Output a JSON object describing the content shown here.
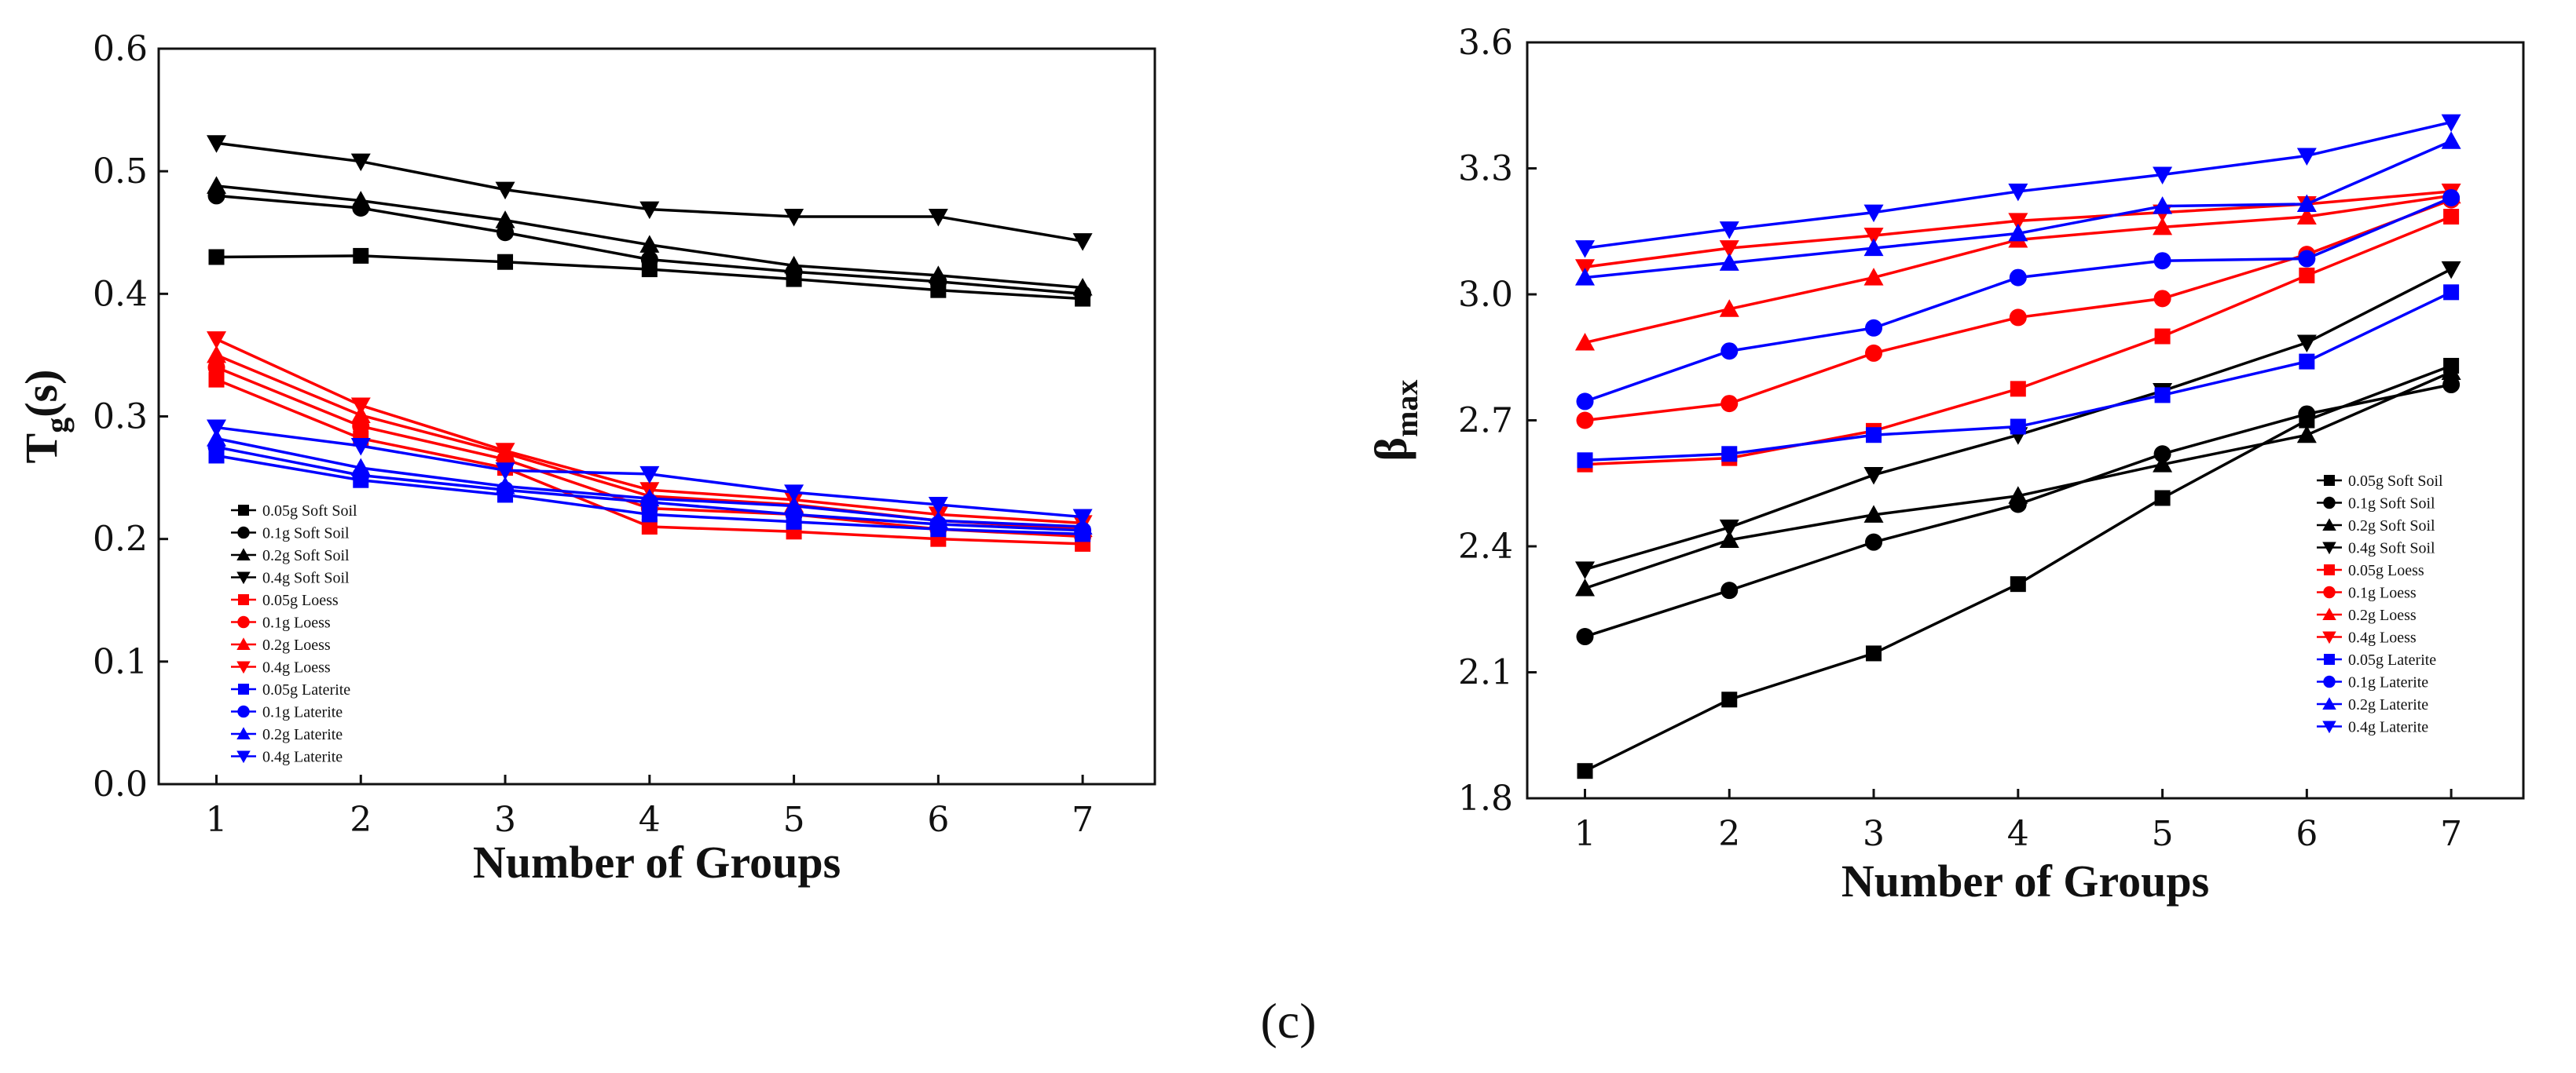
{
  "caption": "(c)",
  "chart_data": [
    {
      "type": "line",
      "xlabel": "Number of Groups",
      "ylabel_main": "T",
      "ylabel_sub": "g",
      "ylabel_tail": "(s)",
      "xlim": [
        0.6,
        7.5
      ],
      "ylim": [
        0.0,
        0.6
      ],
      "xticks": [
        1,
        2,
        3,
        4,
        5,
        6,
        7
      ],
      "yticks": [
        0.0,
        0.1,
        0.2,
        0.3,
        0.4,
        0.5,
        0.6
      ],
      "ytick_labels": [
        "0.0",
        "0.1",
        "0.2",
        "0.3",
        "0.4",
        "0.5",
        "0.6"
      ],
      "legend_position": "bottom-left",
      "x": [
        1,
        2,
        3,
        4,
        5,
        6,
        7
      ],
      "series": [
        {
          "name": "0.05g Soft Soil",
          "color": "#000000",
          "marker": "square",
          "values": [
            0.43,
            0.431,
            0.426,
            0.42,
            0.412,
            0.403,
            0.396
          ]
        },
        {
          "name": "0.1g Soft Soil",
          "color": "#000000",
          "marker": "circle",
          "values": [
            0.48,
            0.47,
            0.45,
            0.428,
            0.418,
            0.41,
            0.4
          ]
        },
        {
          "name": "0.2g Soft Soil",
          "color": "#000000",
          "marker": "triangle-up",
          "values": [
            0.488,
            0.476,
            0.46,
            0.44,
            0.423,
            0.415,
            0.405
          ]
        },
        {
          "name": "0.4g Soft Soil",
          "color": "#000000",
          "marker": "triangle-down",
          "values": [
            0.523,
            0.508,
            0.485,
            0.469,
            0.463,
            0.463,
            0.443
          ]
        },
        {
          "name": "0.05g Loess",
          "color": "#ff0000",
          "marker": "square",
          "values": [
            0.33,
            0.282,
            0.258,
            0.21,
            0.206,
            0.2,
            0.196
          ]
        },
        {
          "name": "0.1g Loess",
          "color": "#ff0000",
          "marker": "circle",
          "values": [
            0.34,
            0.292,
            0.265,
            0.225,
            0.22,
            0.208,
            0.202
          ]
        },
        {
          "name": "0.2g Loess",
          "color": "#ff0000",
          "marker": "triangle-up",
          "values": [
            0.35,
            0.301,
            0.27,
            0.235,
            0.228,
            0.215,
            0.208
          ]
        },
        {
          "name": "0.4g Loess",
          "color": "#ff0000",
          "marker": "triangle-down",
          "values": [
            0.363,
            0.309,
            0.272,
            0.24,
            0.232,
            0.22,
            0.213
          ]
        },
        {
          "name": "0.05g Laterite",
          "color": "#0000ff",
          "marker": "square",
          "values": [
            0.268,
            0.248,
            0.236,
            0.22,
            0.214,
            0.208,
            0.204
          ]
        },
        {
          "name": "0.1g Laterite",
          "color": "#0000ff",
          "marker": "circle",
          "values": [
            0.275,
            0.252,
            0.24,
            0.23,
            0.22,
            0.212,
            0.207
          ]
        },
        {
          "name": "0.2g Laterite",
          "color": "#0000ff",
          "marker": "triangle-up",
          "values": [
            0.282,
            0.258,
            0.243,
            0.233,
            0.227,
            0.215,
            0.21
          ]
        },
        {
          "name": "0.4g Laterite",
          "color": "#0000ff",
          "marker": "triangle-down",
          "values": [
            0.291,
            0.276,
            0.256,
            0.253,
            0.238,
            0.228,
            0.218
          ]
        }
      ]
    },
    {
      "type": "line",
      "xlabel": "Number of Groups",
      "ylabel_main": "β",
      "ylabel_sub": "max",
      "ylabel_tail": "",
      "xlim": [
        0.6,
        7.5
      ],
      "ylim": [
        1.8,
        3.6
      ],
      "xticks": [
        1,
        2,
        3,
        4,
        5,
        6,
        7
      ],
      "yticks": [
        1.8,
        2.1,
        2.4,
        2.7,
        3.0,
        3.3,
        3.6
      ],
      "ytick_labels": [
        "1.8",
        "2.1",
        "2.4",
        "2.7",
        "3.0",
        "3.3",
        "3.6"
      ],
      "legend_position": "bottom-right",
      "x": [
        1,
        2,
        3,
        4,
        5,
        6,
        7
      ],
      "series": [
        {
          "name": "0.05g Soft Soil",
          "color": "#000000",
          "marker": "square",
          "values": [
            1.865,
            2.035,
            2.145,
            2.31,
            2.515,
            2.7,
            2.83
          ]
        },
        {
          "name": "0.1g Soft Soil",
          "color": "#000000",
          "marker": "circle",
          "values": [
            2.185,
            2.295,
            2.41,
            2.5,
            2.62,
            2.715,
            2.785
          ]
        },
        {
          "name": "0.2g Soft Soil",
          "color": "#000000",
          "marker": "triangle-up",
          "values": [
            2.3,
            2.415,
            2.475,
            2.52,
            2.595,
            2.665,
            2.815
          ]
        },
        {
          "name": "0.4g Soft Soil",
          "color": "#000000",
          "marker": "triangle-down",
          "values": [
            2.345,
            2.445,
            2.57,
            2.665,
            2.77,
            2.885,
            3.06
          ]
        },
        {
          "name": "0.05g Loess",
          "color": "#ff0000",
          "marker": "square",
          "values": [
            2.595,
            2.61,
            2.675,
            2.775,
            2.9,
            3.045,
            3.185
          ]
        },
        {
          "name": "0.1g Loess",
          "color": "#ff0000",
          "marker": "circle",
          "values": [
            2.7,
            2.74,
            2.86,
            2.945,
            2.99,
            3.095,
            3.225
          ]
        },
        {
          "name": "0.2g Loess",
          "color": "#ff0000",
          "marker": "triangle-up",
          "values": [
            2.885,
            2.965,
            3.04,
            3.13,
            3.16,
            3.185,
            3.235
          ]
        },
        {
          "name": "0.4g Loess",
          "color": "#ff0000",
          "marker": "triangle-down",
          "values": [
            3.065,
            3.11,
            3.14,
            3.175,
            3.195,
            3.215,
            3.245
          ]
        },
        {
          "name": "0.05g Laterite",
          "color": "#0000ff",
          "marker": "square",
          "values": [
            2.605,
            2.62,
            2.665,
            2.685,
            2.76,
            2.84,
            3.005
          ]
        },
        {
          "name": "0.1g Laterite",
          "color": "#0000ff",
          "marker": "circle",
          "values": [
            2.745,
            2.865,
            2.92,
            3.04,
            3.08,
            3.085,
            3.23
          ]
        },
        {
          "name": "0.2g Laterite",
          "color": "#0000ff",
          "marker": "triangle-up",
          "values": [
            3.04,
            3.075,
            3.11,
            3.145,
            3.21,
            3.215,
            3.365
          ]
        },
        {
          "name": "0.4g Laterite",
          "color": "#0000ff",
          "marker": "triangle-down",
          "values": [
            3.11,
            3.155,
            3.195,
            3.245,
            3.285,
            3.33,
            3.41
          ]
        }
      ]
    }
  ]
}
